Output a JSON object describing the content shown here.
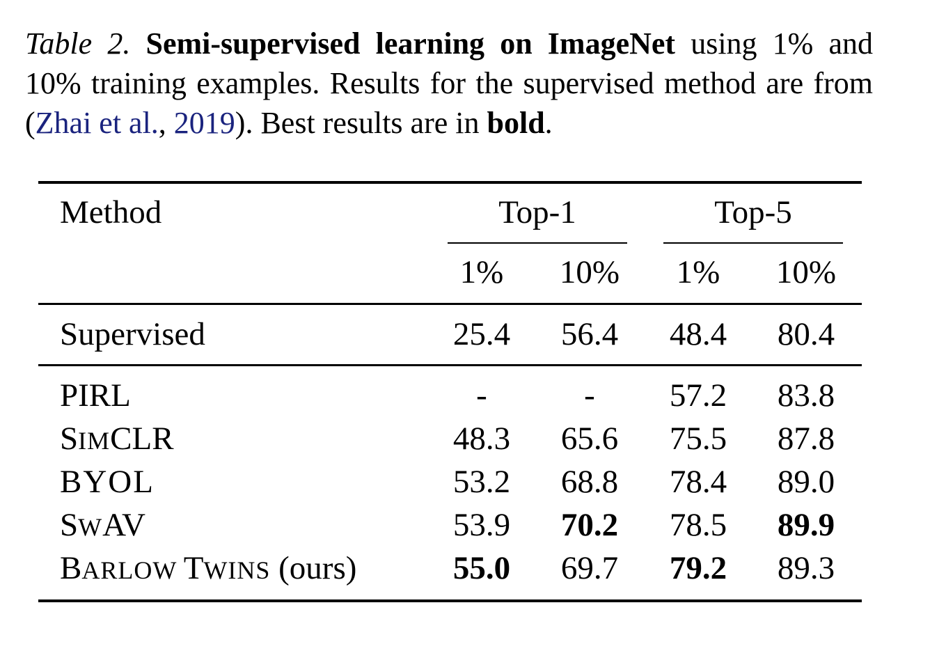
{
  "caption": {
    "label": "Table 2.",
    "title": "Semi-supervised learning on ImageNet",
    "text_1": " using 1% and 10% training examples.  Results for the supervised method are from (",
    "cite_author": "Zhai et al.",
    "cite_sep": ", ",
    "cite_year": "2019",
    "text_2": "). Best results are in ",
    "bold_word": "bold",
    "text_end": "."
  },
  "table": {
    "header": {
      "method": "Method",
      "groups": [
        "Top-1",
        "Top-5"
      ],
      "subcolumns": [
        "1%",
        "10%",
        "1%",
        "10%"
      ]
    },
    "baseline_row": {
      "method": "Supervised",
      "values": [
        "25.4",
        "56.4",
        "48.4",
        "80.4"
      ],
      "bold": [
        false,
        false,
        false,
        false
      ]
    },
    "rows": [
      {
        "method_parts": [
          {
            "big": "PIRL",
            "small": ""
          }
        ],
        "suffix": "",
        "values": [
          "-",
          "-",
          "57.2",
          "83.8"
        ],
        "bold": [
          false,
          false,
          false,
          false
        ]
      },
      {
        "method_parts": [
          {
            "big": "S",
            "small": "IM"
          },
          {
            "big": "CLR",
            "small": ""
          }
        ],
        "suffix": "",
        "values": [
          "48.3",
          "65.6",
          "75.5",
          "87.8"
        ],
        "bold": [
          false,
          false,
          false,
          false
        ]
      },
      {
        "method_parts": [
          {
            "big": "BYOL",
            "small": ""
          }
        ],
        "suffix": "",
        "values": [
          "53.2",
          "68.8",
          "78.4",
          "89.0"
        ],
        "bold": [
          false,
          false,
          false,
          false
        ]
      },
      {
        "method_parts": [
          {
            "big": "S",
            "small": "W"
          },
          {
            "big": "AV",
            "small": ""
          }
        ],
        "suffix": "",
        "values": [
          "53.9",
          "70.2",
          "78.5",
          "89.9"
        ],
        "bold": [
          false,
          true,
          false,
          true
        ]
      },
      {
        "method_parts": [
          {
            "big": "B",
            "small": "ARLOW "
          },
          {
            "big": "T",
            "small": "WINS"
          }
        ],
        "suffix": " (ours)",
        "values": [
          "55.0",
          "69.7",
          "79.2",
          "89.3"
        ],
        "bold": [
          true,
          false,
          true,
          false
        ]
      }
    ]
  }
}
